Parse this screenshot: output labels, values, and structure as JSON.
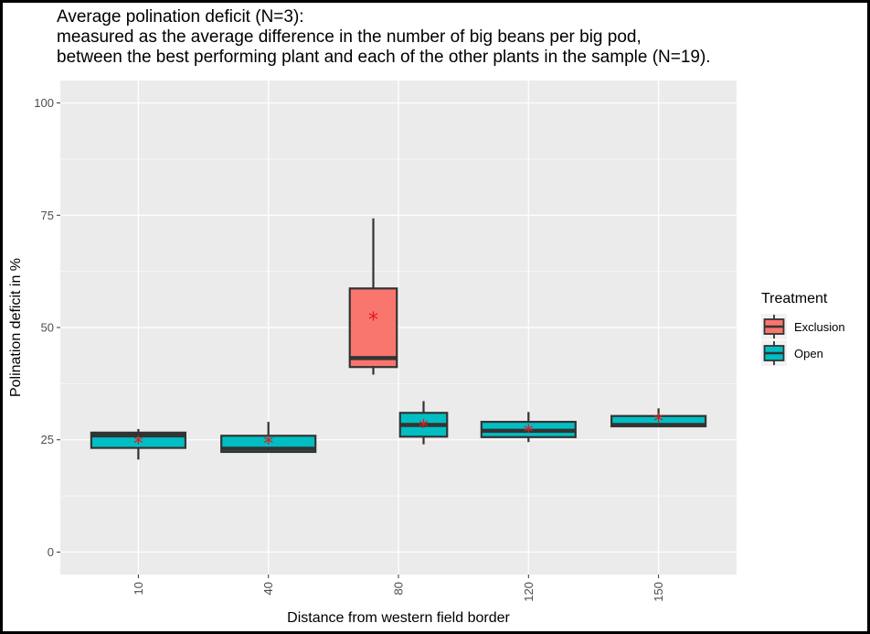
{
  "chart_data": {
    "type": "boxplot",
    "title": "Average polination deficit (N=3):",
    "subtitle_lines": [
      "measured as the average difference in the number of big beans per big pod,",
      "between the best performing plant and each of the other plants in the sample (N=19)."
    ],
    "xlabel": "Distance from western field border",
    "ylabel": "Polination deficit in %",
    "categories": [
      "10",
      "40",
      "80",
      "120",
      "150"
    ],
    "ylim": [
      -5,
      105
    ],
    "yticks": [
      0,
      25,
      50,
      75,
      100
    ],
    "legend": {
      "title": "Treatment",
      "placement": "right",
      "entries": [
        {
          "label": "Exclusion",
          "color": "#F8766D"
        },
        {
          "label": "Open",
          "color": "#00BFC4"
        }
      ]
    },
    "grid": true,
    "mean_marker_color": "#E41A1C",
    "series": [
      {
        "name": "Exclusion",
        "color": "#F8766D",
        "boxes": [
          {
            "category": "80",
            "min": 39.5,
            "q1": 41.2,
            "median": 43.2,
            "q3": 58.7,
            "max": 74.3,
            "mean": 52.0
          }
        ]
      },
      {
        "name": "Open",
        "color": "#00BFC4",
        "boxes": [
          {
            "category": "10",
            "min": 20.6,
            "q1": 23.2,
            "median": 26.0,
            "q3": 26.6,
            "max": 27.4,
            "mean": 24.4
          },
          {
            "category": "40",
            "min": 22.3,
            "q1": 22.3,
            "median": 23.0,
            "q3": 25.9,
            "max": 29.0,
            "mean": 24.4
          },
          {
            "category": "80",
            "min": 24.0,
            "q1": 25.7,
            "median": 28.3,
            "q3": 31.0,
            "max": 33.6,
            "mean": 28.1
          },
          {
            "category": "120",
            "min": 24.5,
            "q1": 25.6,
            "median": 27.0,
            "q3": 29.0,
            "max": 31.2,
            "mean": 27.0
          },
          {
            "category": "150",
            "min": 28.0,
            "q1": 28.0,
            "median": 28.3,
            "q3": 30.3,
            "max": 32.0,
            "mean": 29.4
          }
        ]
      }
    ]
  }
}
